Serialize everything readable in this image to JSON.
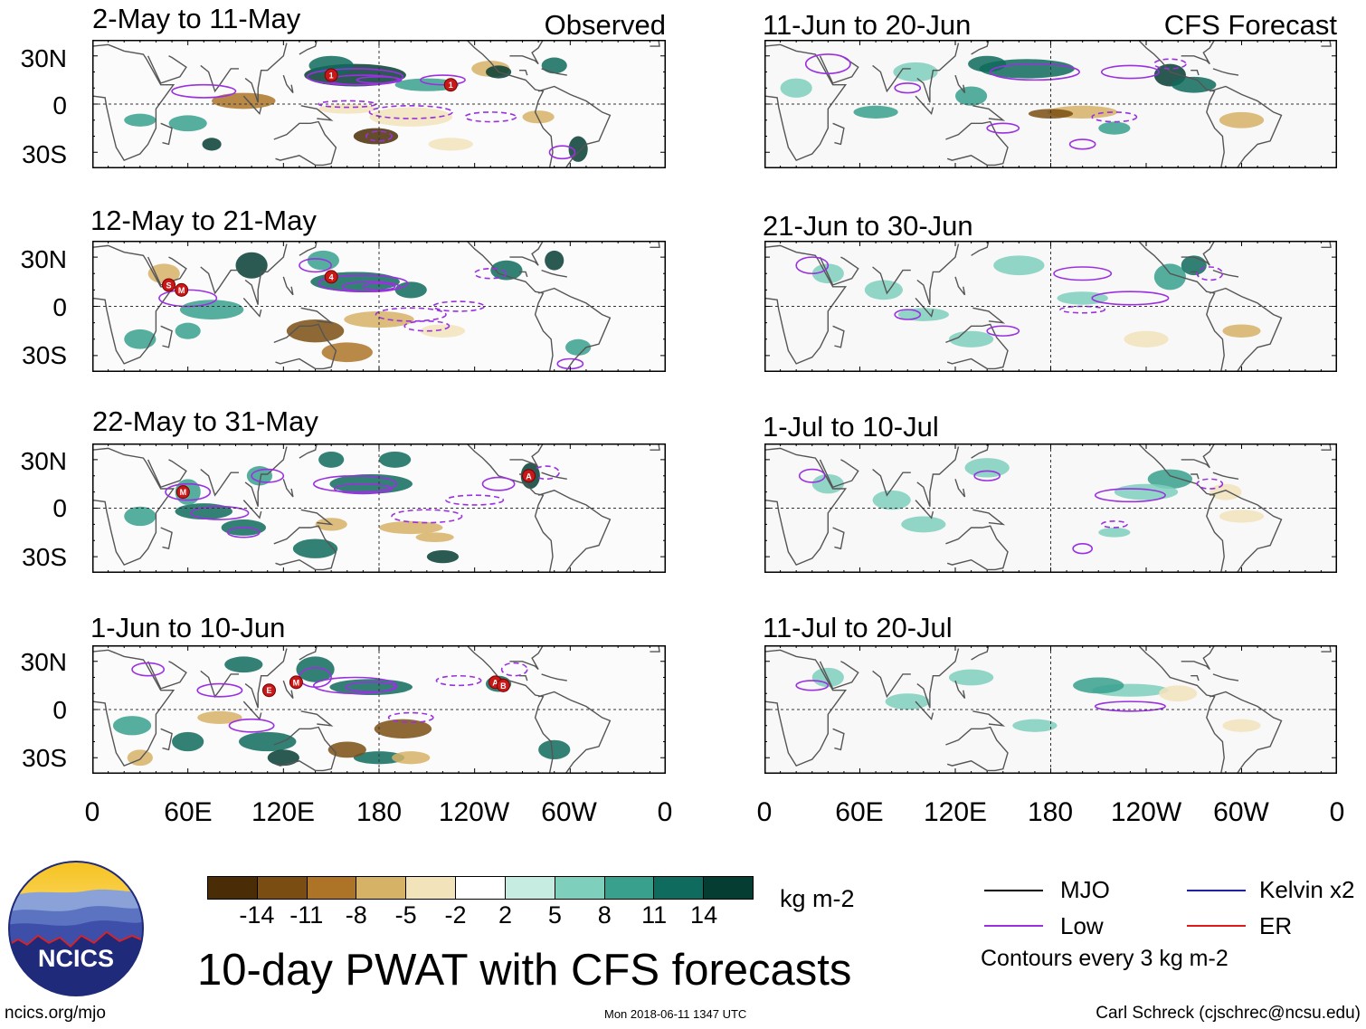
{
  "figure": {
    "title": "10-day PWAT with CFS forecasts",
    "units": "kg m-2",
    "contour_note": "Contours every 3 kg m-2",
    "site": "ncics.org/mjo",
    "timestamp": "Mon 2018-06-11 1347 UTC",
    "credit": "Carl Schreck (cjschrec@ncsu.edu)",
    "logo_text": "NCICS"
  },
  "column_tags": {
    "observed": "Observed",
    "forecast": "CFS Forecast"
  },
  "panels": [
    {
      "title": "2-May to 11-May",
      "kind": "observed"
    },
    {
      "title": "12-May to 21-May",
      "kind": "observed"
    },
    {
      "title": "22-May to 31-May",
      "kind": "observed"
    },
    {
      "title": "1-Jun to 10-Jun",
      "kind": "observed"
    },
    {
      "title": "11-Jun to 20-Jun",
      "kind": "forecast"
    },
    {
      "title": "21-Jun to 30-Jun",
      "kind": "forecast"
    },
    {
      "title": "1-Jul to 10-Jul",
      "kind": "forecast"
    },
    {
      "title": "11-Jul to 20-Jul",
      "kind": "forecast"
    }
  ],
  "axes": {
    "lat_labels": [
      "30N",
      "0",
      "30S"
    ],
    "lon_labels": [
      "0",
      "60E",
      "120E",
      "180",
      "120W",
      "60W",
      "0"
    ]
  },
  "colorbar": {
    "colors": [
      "#4a2d06",
      "#7a4d12",
      "#ad7428",
      "#d6b266",
      "#f2e3bb",
      "#ffffff",
      "#c6ebe0",
      "#7fcfbd",
      "#38a08d",
      "#0f6b5d",
      "#053d33"
    ],
    "ticks": [
      "-14",
      "-11",
      "-8",
      "-5",
      "-2",
      "2",
      "5",
      "8",
      "11",
      "14"
    ]
  },
  "legend": [
    {
      "label": "MJO",
      "color": "#000000"
    },
    {
      "label": "Kelvin x2",
      "color": "#1a1ad6"
    },
    {
      "label": "Low",
      "color": "#9b30e0"
    },
    {
      "label": "ER",
      "color": "#e01a1a"
    }
  ],
  "storm_markers": [
    {
      "panel": 0,
      "label": "1"
    },
    {
      "panel": 0,
      "label": "1"
    },
    {
      "panel": 1,
      "label": "S"
    },
    {
      "panel": 1,
      "label": "M"
    },
    {
      "panel": 1,
      "label": "4"
    },
    {
      "panel": 2,
      "label": "M"
    },
    {
      "panel": 2,
      "label": "A"
    },
    {
      "panel": 3,
      "label": "E"
    },
    {
      "panel": 3,
      "label": "M"
    },
    {
      "panel": 3,
      "label": "A"
    },
    {
      "panel": 3,
      "label": "B"
    }
  ]
}
